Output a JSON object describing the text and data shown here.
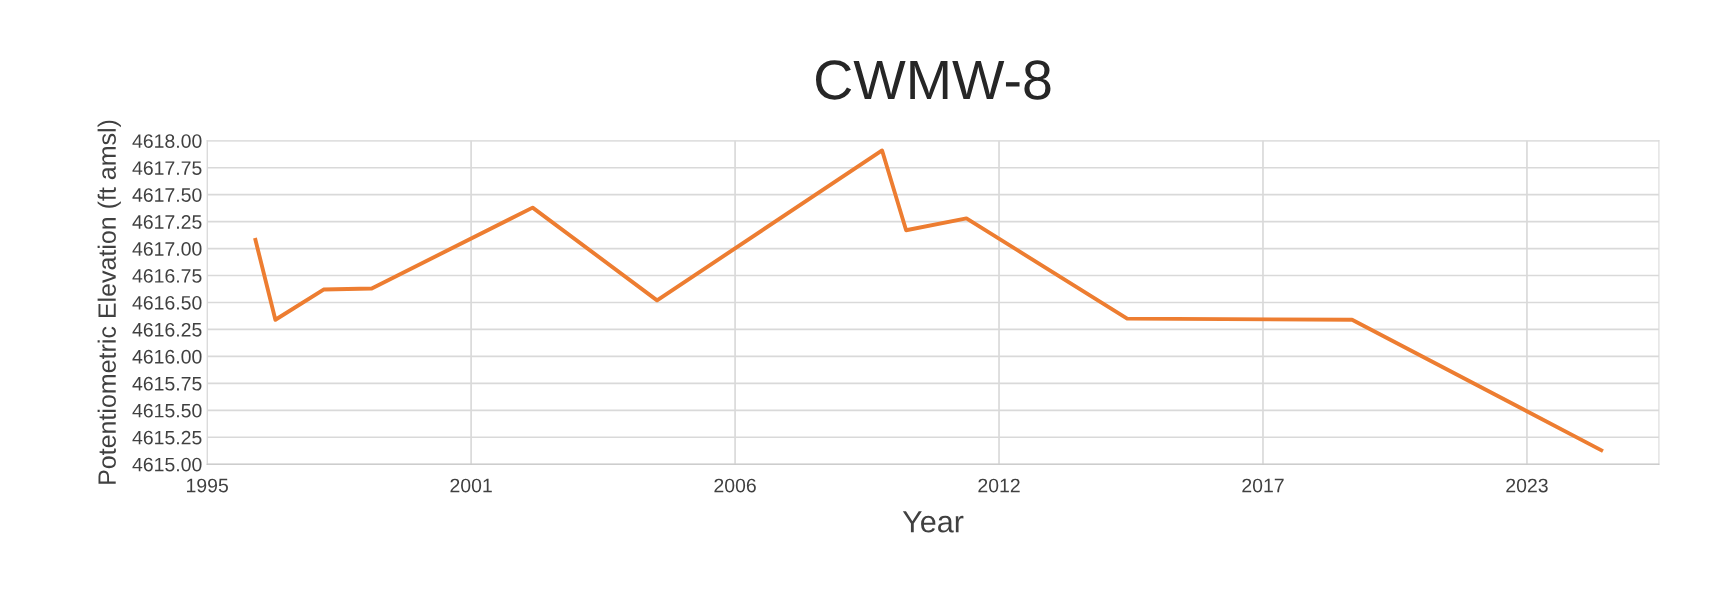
{
  "chart_data": {
    "type": "line",
    "title": "CWMW-8",
    "xlabel": "Year",
    "ylabel": "Potentiometric Elevation (ft amsl)",
    "x": [
      "1996-12",
      "1997-05",
      "1998-05",
      "1999-05",
      "2002-09",
      "2005-04",
      "2009-12",
      "2010-06",
      "2011-09",
      "2015-01",
      "2019-09",
      "2024-11"
    ],
    "series": [
      {
        "color": "#ed7d31",
        "values": [
          4617.08,
          4616.34,
          4616.62,
          4616.63,
          4617.38,
          4616.52,
          4617.91,
          4617.17,
          4617.28,
          4616.35,
          4616.34,
          4615.13
        ]
      }
    ],
    "xlim": [
      "1995-12-01",
      "2026-01-12"
    ],
    "xticks": [
      {
        "value": "1995-12-01",
        "label": "1995"
      },
      {
        "value": "2001-05-23",
        "label": "2001"
      },
      {
        "value": "2006-11-13",
        "label": "2006"
      },
      {
        "value": "2012-05-05",
        "label": "2012"
      },
      {
        "value": "2017-10-26",
        "label": "2017"
      },
      {
        "value": "2023-04-18",
        "label": "2023"
      }
    ],
    "ylim": [
      4615.0,
      4618.0
    ],
    "yticks": [
      {
        "value": 4615.0,
        "label": "4615.00"
      },
      {
        "value": 4615.25,
        "label": "4615.25"
      },
      {
        "value": 4615.5,
        "label": "4615.50"
      },
      {
        "value": 4615.75,
        "label": "4615.75"
      },
      {
        "value": 4616.0,
        "label": "4616.00"
      },
      {
        "value": 4616.25,
        "label": "4616.25"
      },
      {
        "value": 4616.5,
        "label": "4616.50"
      },
      {
        "value": 4616.75,
        "label": "4616.75"
      },
      {
        "value": 4617.0,
        "label": "4617.00"
      },
      {
        "value": 4617.25,
        "label": "4617.25"
      },
      {
        "value": 4617.5,
        "label": "4617.50"
      },
      {
        "value": 4617.75,
        "label": "4617.75"
      },
      {
        "value": 4618.0,
        "label": "4618.00"
      }
    ],
    "grid": true,
    "marker": "none",
    "line_style": "solid"
  }
}
